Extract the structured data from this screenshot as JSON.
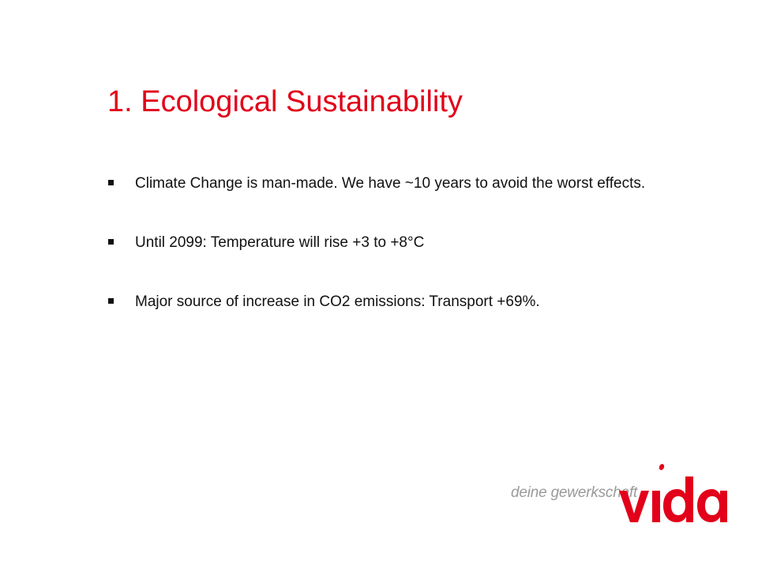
{
  "slide": {
    "title": "1. Ecological Sustainability",
    "bullets": [
      "Climate Change is man-made. We have ~10 years to avoid the worst effects.",
      "Until 2099: Temperature will rise +3 to +8°C",
      "Major source of increase in CO2 emissions: Transport +69%."
    ]
  },
  "logo": {
    "tagline": "deine gewerkschaft",
    "wordmark": "vida",
    "brand_color": "#e2001a"
  },
  "colors": {
    "title": "#e2001a",
    "text": "#111111",
    "tagline": "#9a9a9a"
  }
}
